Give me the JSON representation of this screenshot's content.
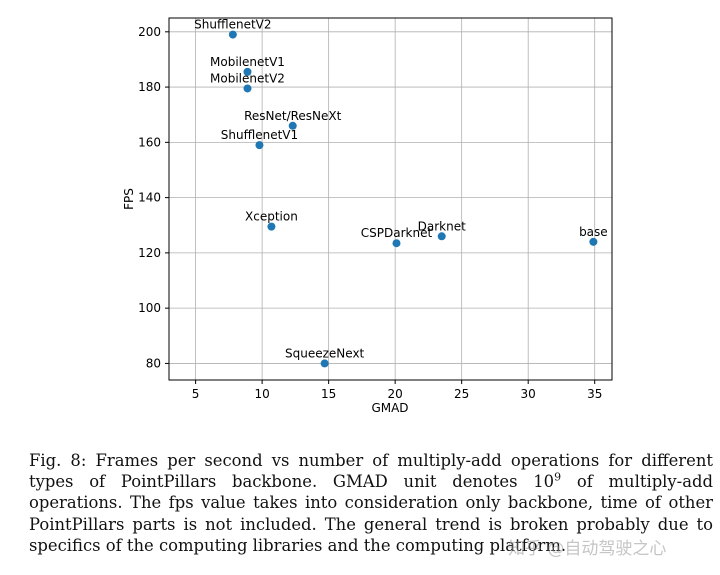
{
  "chart_data": {
    "type": "scatter",
    "xlabel": "GMAD",
    "ylabel": "FPS",
    "xlim": [
      3.0,
      36.3
    ],
    "ylim": [
      74,
      205
    ],
    "xticks": [
      5,
      10,
      15,
      20,
      25,
      30,
      35
    ],
    "yticks": [
      80,
      100,
      120,
      140,
      160,
      180,
      200
    ],
    "grid": true,
    "marker_color": "#1f77b4",
    "points": [
      {
        "label": "ShufflenetV2",
        "x": 7.8,
        "y": 199
      },
      {
        "label": "MobilenetV1",
        "x": 8.9,
        "y": 185.5
      },
      {
        "label": "MobilenetV2",
        "x": 8.9,
        "y": 179.5
      },
      {
        "label": "ResNet/ResNeXt",
        "x": 12.3,
        "y": 166
      },
      {
        "label": "ShufflenetV1",
        "x": 9.8,
        "y": 159
      },
      {
        "label": "Xception",
        "x": 10.7,
        "y": 129.5
      },
      {
        "label": "CSPDarknet",
        "x": 20.1,
        "y": 123.5
      },
      {
        "label": "Darknet",
        "x": 23.5,
        "y": 126
      },
      {
        "label": "base",
        "x": 34.9,
        "y": 124
      },
      {
        "label": "SqueezeNext",
        "x": 14.7,
        "y": 80
      }
    ]
  },
  "caption": {
    "prefix": "Fig. 8: Frames per second vs number of multiply-add operations for different types of PointPillars backbone. GMAD unit denotes 10",
    "exponent": "9",
    "suffix": " of multiply-add operations. The fps value takes into consideration only backbone, time of other PointPillars parts is not included. The general trend is broken probably due to specifics of the computing libraries and the computing platform."
  },
  "watermark": "知乎 @自动驾驶之心"
}
